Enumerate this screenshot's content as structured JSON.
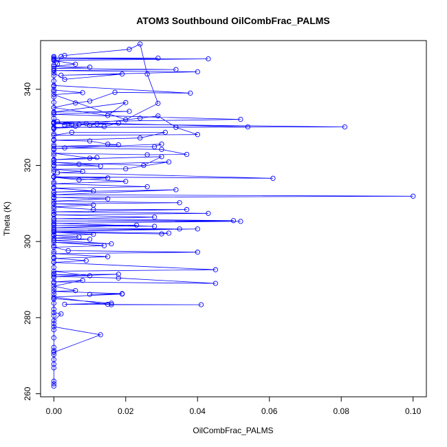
{
  "chart_data": {
    "type": "line",
    "title": "ATOM3 Southbound OilCombFrac_PALMS",
    "xlabel": "OilCombFrac_PALMS",
    "ylabel": "Theta (K)",
    "xlim": [
      -0.0037,
      0.1037
    ],
    "ylim": [
      259.2,
      352.8
    ],
    "xticks": [
      0.0,
      0.02,
      0.04,
      0.06,
      0.08,
      0.1
    ],
    "xtick_labels": [
      "0.00",
      "0.02",
      "0.04",
      "0.06",
      "0.08",
      "0.10"
    ],
    "yticks": [
      260,
      280,
      300,
      320,
      340
    ],
    "ytick_labels": [
      "260",
      "280",
      "300",
      "320",
      "340"
    ],
    "grid": false,
    "marker": "open-circle",
    "series_color": "#0000ff",
    "series": [
      {
        "points": [
          [
            0.0,
            262.0
          ],
          [
            0.0,
            262.6
          ],
          [
            0.0,
            263.3
          ],
          [
            0.0,
            266.8
          ],
          [
            0.0,
            267.8
          ],
          [
            0.0,
            269.0
          ],
          [
            0.0,
            270.3
          ],
          [
            0.0,
            271.3
          ],
          [
            0.0,
            272.2
          ],
          [
            0.0,
            274.7
          ],
          [
            0.0,
            276.8
          ],
          [
            0.0,
            278.4
          ],
          [
            0.0,
            280.5
          ],
          [
            0.0,
            282.2
          ],
          [
            0.0,
            283.8
          ],
          [
            0.0,
            284.9
          ],
          [
            0.0,
            286.2
          ],
          [
            0.0,
            287.6
          ],
          [
            0.0,
            289.1
          ],
          [
            0.0,
            290.5
          ],
          [
            0.0,
            291.6
          ],
          [
            0.0,
            293.2
          ],
          [
            0.0,
            294.6
          ],
          [
            0.0,
            295.8
          ],
          [
            0.0,
            297.3
          ],
          [
            0.0,
            298.9
          ],
          [
            0.0,
            300.4
          ],
          [
            0.0,
            301.8
          ],
          [
            0.0,
            303.1
          ],
          [
            0.0,
            304.5
          ],
          [
            0.0,
            305.9
          ],
          [
            0.0,
            307.2
          ],
          [
            0.0,
            308.6
          ],
          [
            0.0,
            310.0
          ],
          [
            0.0,
            311.4
          ],
          [
            0.0,
            312.9
          ],
          [
            0.0,
            314.2
          ],
          [
            0.0,
            315.6
          ],
          [
            0.0,
            317.1
          ],
          [
            0.0,
            318.4
          ],
          [
            0.0,
            319.8
          ],
          [
            0.0,
            321.3
          ],
          [
            0.0,
            322.7
          ],
          [
            0.0,
            324.1
          ],
          [
            0.0,
            325.4
          ],
          [
            0.0,
            326.8
          ],
          [
            0.0,
            328.3
          ],
          [
            0.0,
            329.6
          ],
          [
            0.0,
            331.0
          ],
          [
            0.0,
            332.4
          ],
          [
            0.0,
            333.8
          ],
          [
            0.0,
            335.2
          ],
          [
            0.0,
            336.6
          ],
          [
            0.0,
            338.0
          ],
          [
            0.0,
            339.4
          ],
          [
            0.0,
            340.8
          ],
          [
            0.0,
            342.2
          ],
          [
            0.0,
            343.6
          ],
          [
            0.0,
            345.0
          ],
          [
            0.0,
            346.4
          ],
          [
            0.0,
            347.8
          ],
          [
            0.0,
            348.6
          ]
        ]
      },
      {
        "points": [
          [
            0.0,
            348.3
          ],
          [
            0.029,
            348.2
          ],
          [
            0.0,
            348.0
          ],
          [
            0.043,
            348.0
          ],
          [
            0.0,
            347.6
          ],
          [
            0.006,
            346.6
          ],
          [
            0.0,
            346.0
          ],
          [
            0.01,
            345.8
          ],
          [
            0.0,
            345.5
          ],
          [
            0.034,
            345.2
          ],
          [
            0.0,
            344.9
          ],
          [
            0.04,
            344.6
          ],
          [
            0.002,
            343.7
          ],
          [
            0.019,
            344.0
          ],
          [
            0.003,
            342.6
          ],
          [
            0.0,
            344.3
          ],
          [
            0.001,
            346.7
          ],
          [
            0.002,
            348.6
          ],
          [
            0.003,
            348.9
          ],
          [
            0.021,
            350.5
          ],
          [
            0.024,
            351.9
          ],
          [
            0.026,
            344.0
          ],
          [
            0.029,
            336.3
          ],
          [
            0.02,
            332.0
          ],
          [
            0.0,
            338.6
          ],
          [
            0.008,
            339.1
          ],
          [
            0.0,
            339.8
          ],
          [
            0.0,
            341.0
          ],
          [
            0.038,
            339.0
          ],
          [
            0.017,
            339.2
          ],
          [
            0.01,
            336.9
          ],
          [
            0.006,
            336.4
          ],
          [
            0.0,
            335.2
          ],
          [
            0.015,
            333.1
          ],
          [
            0.02,
            336.5
          ],
          [
            0.0,
            334.0
          ],
          [
            0.021,
            334.2
          ],
          [
            0.0,
            333.4
          ],
          [
            0.052,
            332.1
          ],
          [
            0.0,
            331.4
          ],
          [
            0.054,
            330.1
          ],
          [
            0.0,
            330.0
          ],
          [
            0.081,
            330.1
          ],
          [
            0.0,
            331.0
          ],
          [
            0.005,
            330.8
          ],
          [
            0.0,
            331.2
          ],
          [
            0.007,
            330.8
          ],
          [
            0.001,
            331.5
          ],
          [
            0.003,
            330.6
          ],
          [
            0.006,
            330.3
          ],
          [
            0.009,
            331.0
          ],
          [
            0.01,
            330.5
          ],
          [
            0.012,
            330.9
          ],
          [
            0.018,
            331.1
          ],
          [
            0.014,
            330.2
          ],
          [
            0.0,
            329.8
          ],
          [
            0.024,
            332.4
          ],
          [
            0.029,
            333.0
          ],
          [
            0.034,
            330.0
          ],
          [
            0.04,
            328.1
          ],
          [
            0.0,
            327.9
          ],
          [
            0.005,
            328.7
          ],
          [
            0.031,
            328.7
          ],
          [
            0.024,
            327.2
          ],
          [
            0.0,
            326.6
          ],
          [
            0.01,
            326.4
          ],
          [
            0.015,
            325.6
          ],
          [
            0.018,
            325.4
          ],
          [
            0.0,
            325.0
          ],
          [
            0.028,
            324.9
          ],
          [
            0.03,
            325.6
          ],
          [
            0.0,
            324.4
          ],
          [
            0.003,
            324.6
          ],
          [
            0.03,
            324.2
          ],
          [
            0.037,
            322.9
          ],
          [
            0.026,
            322.8
          ],
          [
            0.0,
            323.2
          ],
          [
            0.01,
            321.9
          ],
          [
            0.012,
            322.1
          ],
          [
            0.0,
            321.5
          ],
          [
            0.03,
            322.3
          ],
          [
            0.025,
            320.0
          ],
          [
            0.0,
            320.8
          ],
          [
            0.007,
            320.3
          ],
          [
            0.013,
            319.8
          ],
          [
            0.0,
            320.1
          ],
          [
            0.032,
            320.9
          ],
          [
            0.02,
            319.1
          ],
          [
            0.0,
            319.0
          ],
          [
            0.008,
            318.4
          ],
          [
            0.001,
            318.1
          ],
          [
            0.061,
            316.6
          ],
          [
            0.0,
            317.0
          ],
          [
            0.015,
            316.7
          ],
          [
            0.007,
            316.2
          ],
          [
            0.0,
            316.9
          ],
          [
            0.02,
            315.8
          ],
          [
            0.0,
            315.2
          ],
          [
            0.026,
            314.4
          ],
          [
            0.0,
            314.0
          ],
          [
            0.011,
            313.3
          ],
          [
            0.0,
            313.0
          ],
          [
            0.034,
            313.6
          ],
          [
            0.0,
            312.3
          ],
          [
            0.1,
            311.9
          ],
          [
            0.0,
            311.6
          ],
          [
            0.015,
            311.2
          ],
          [
            0.0,
            310.6
          ],
          [
            0.035,
            310.2
          ],
          [
            0.0,
            309.9
          ],
          [
            0.011,
            309.6
          ],
          [
            0.0,
            309.1
          ],
          [
            0.011,
            308.4
          ],
          [
            0.037,
            308.4
          ],
          [
            0.0,
            307.8
          ],
          [
            0.043,
            307.4
          ],
          [
            0.0,
            307.0
          ],
          [
            0.028,
            306.4
          ],
          [
            0.0,
            306.0
          ],
          [
            0.05,
            305.5
          ],
          [
            0.0,
            305.4
          ],
          [
            0.052,
            305.3
          ],
          [
            0.0,
            304.8
          ],
          [
            0.028,
            304.0
          ],
          [
            0.0,
            304.2
          ],
          [
            0.023,
            304.3
          ],
          [
            0.0,
            303.6
          ],
          [
            0.035,
            303.3
          ],
          [
            0.0,
            303.0
          ],
          [
            0.04,
            303.3
          ],
          [
            0.0,
            302.6
          ],
          [
            0.032,
            302.2
          ],
          [
            0.03,
            302.0
          ],
          [
            0.0,
            302.4
          ],
          [
            0.011,
            301.9
          ],
          [
            0.0,
            301.6
          ],
          [
            0.007,
            301.2
          ],
          [
            0.0,
            300.9
          ],
          [
            0.01,
            300.6
          ],
          [
            0.0,
            300.3
          ],
          [
            0.016,
            299.4
          ],
          [
            0.0,
            299.8
          ],
          [
            0.014,
            298.9
          ],
          [
            0.0,
            298.5
          ],
          [
            0.004,
            297.6
          ],
          [
            0.04,
            297.2
          ],
          [
            0.0,
            296.8
          ],
          [
            0.015,
            296.0
          ],
          [
            0.0,
            295.6
          ],
          [
            0.009,
            295.0
          ],
          [
            0.0,
            294.5
          ],
          [
            0.045,
            292.6
          ],
          [
            0.0,
            292.2
          ],
          [
            0.01,
            291.0
          ],
          [
            0.0,
            291.3
          ],
          [
            0.018,
            291.4
          ],
          [
            0.0,
            290.8
          ],
          [
            0.018,
            290.4
          ],
          [
            0.045,
            289.0
          ],
          [
            0.0,
            289.4
          ],
          [
            0.008,
            289.8
          ],
          [
            0.0,
            288.3
          ],
          [
            0.006,
            287.1
          ],
          [
            0.0,
            286.9
          ],
          [
            0.019,
            286.3
          ],
          [
            0.01,
            286.1
          ],
          [
            0.019,
            286.2
          ],
          [
            0.0,
            285.4
          ],
          [
            0.015,
            283.5
          ],
          [
            0.016,
            283.4
          ],
          [
            0.041,
            283.4
          ],
          [
            0.003,
            283.5
          ],
          [
            0.016,
            283.8
          ],
          [
            0.0,
            285.0
          ],
          [
            0.0,
            281.3
          ],
          [
            0.002,
            281.0
          ],
          [
            0.0,
            279.2
          ],
          [
            0.0,
            277.6
          ],
          [
            0.013,
            275.5
          ],
          [
            0.0,
            270.9
          ]
        ]
      }
    ]
  }
}
